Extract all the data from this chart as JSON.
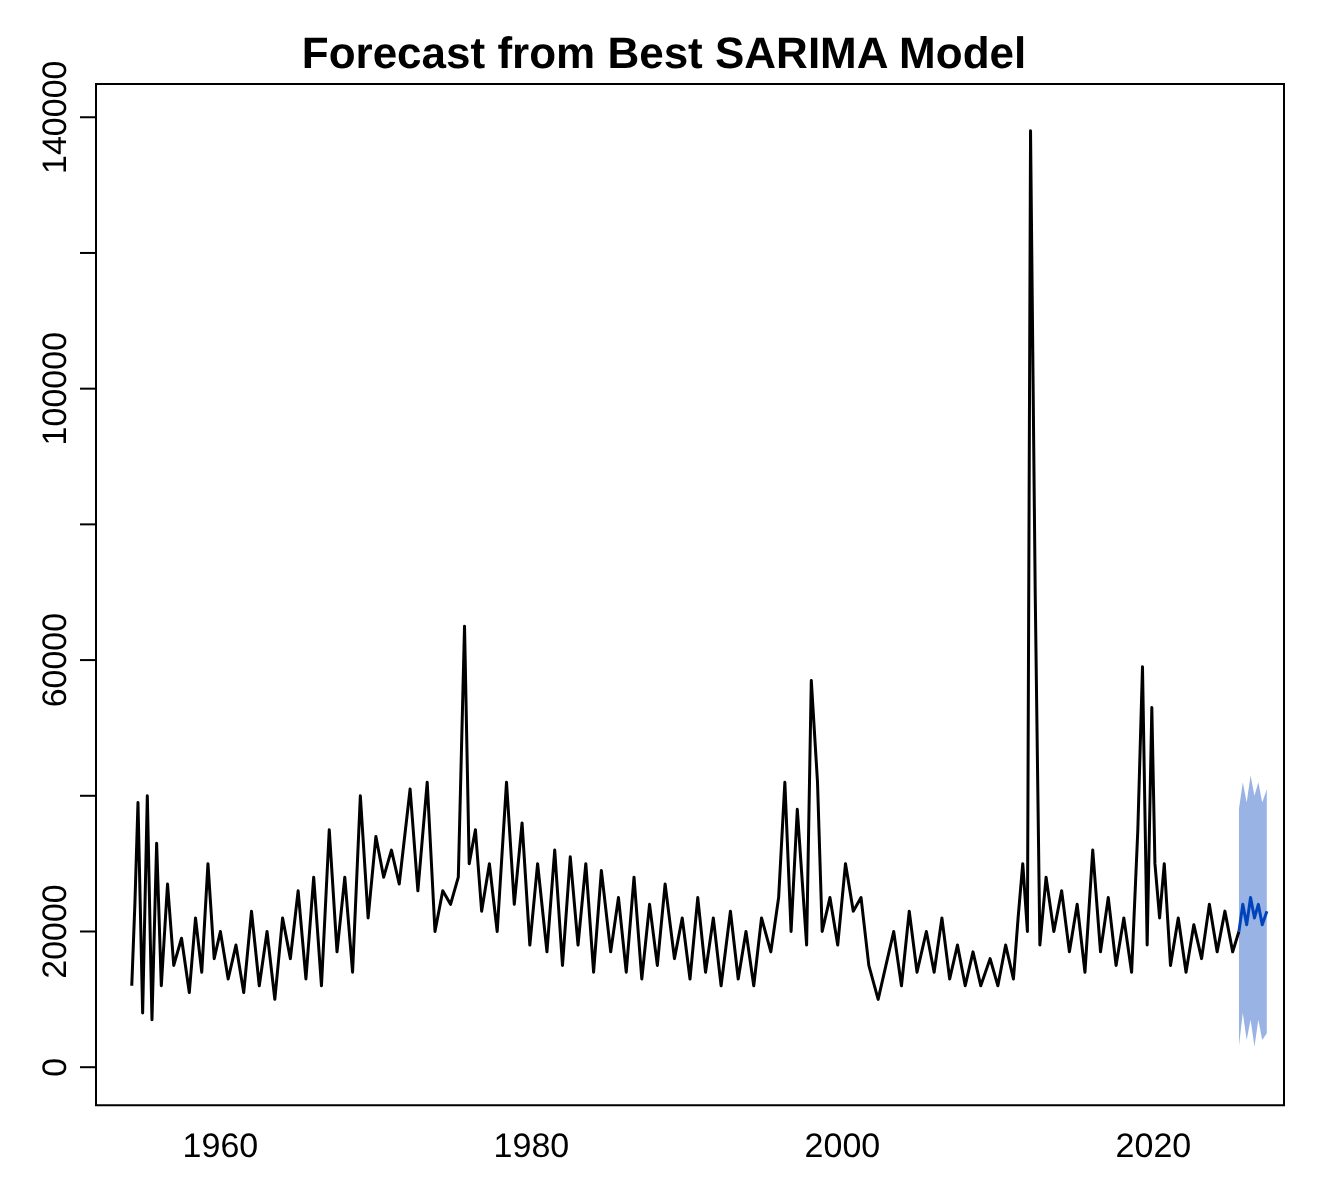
{
  "chart_data": {
    "type": "line",
    "title": "Forecast from Best SARIMA Model",
    "xlim": [
      1952,
      2028.4
    ],
    "xticks": [
      1960,
      1980,
      2000,
      2020
    ],
    "ylim": [
      -5600,
      144900
    ],
    "yticks": [
      0,
      20000,
      {
        "value": 40000,
        "label": null
      },
      60000,
      {
        "value": 80000,
        "label": null
      },
      100000,
      {
        "value": 120000,
        "label": null
      },
      140000
    ],
    "grid": false,
    "marker": "none",
    "series": [
      {
        "color": "#000000",
        "x": [
          1954.3,
          1954.5,
          1954.7,
          1955.0,
          1955.3,
          1955.6,
          1955.9,
          1956.2,
          1956.6,
          1957.0,
          1957.5,
          1958.0,
          1958.4,
          1958.8,
          1959.2,
          1959.6,
          1960.0,
          1960.5,
          1961.0,
          1961.5,
          1962.0,
          1962.5,
          1963.0,
          1963.5,
          1964.0,
          1964.5,
          1965.0,
          1965.5,
          1966.0,
          1966.5,
          1967.0,
          1967.5,
          1968.0,
          1968.5,
          1969.0,
          1969.5,
          1970.0,
          1970.5,
          1971.0,
          1971.5,
          1972.2,
          1972.7,
          1973.3,
          1973.8,
          1974.3,
          1974.8,
          1975.3,
          1975.7,
          1976.0,
          1976.4,
          1976.8,
          1977.3,
          1977.8,
          1978.4,
          1978.9,
          1979.4,
          1979.9,
          1980.4,
          1981.0,
          1981.5,
          1982.0,
          1982.5,
          1983.0,
          1983.5,
          1984.0,
          1984.5,
          1985.1,
          1985.6,
          1986.1,
          1986.6,
          1987.1,
          1987.6,
          1988.1,
          1988.6,
          1989.2,
          1989.7,
          1990.2,
          1990.7,
          1991.2,
          1991.7,
          1992.2,
          1992.8,
          1993.3,
          1993.8,
          1994.3,
          1994.8,
          1995.4,
          1995.9,
          1996.3,
          1996.7,
          1997.1,
          1997.7,
          1998.0,
          1998.4,
          1998.7,
          1999.2,
          1999.7,
          2000.2,
          2000.7,
          2001.2,
          2001.7,
          2002.3,
          2002.8,
          2003.3,
          2003.8,
          2004.3,
          2004.8,
          2005.4,
          2005.9,
          2006.4,
          2006.9,
          2007.4,
          2007.9,
          2008.4,
          2008.9,
          2009.5,
          2010.0,
          2010.5,
          2011.0,
          2011.3,
          2011.6,
          2011.9,
          2012.1,
          2012.4,
          2012.7,
          2013.1,
          2013.6,
          2014.1,
          2014.6,
          2015.1,
          2015.6,
          2016.1,
          2016.6,
          2017.1,
          2017.6,
          2018.1,
          2018.6,
          2019.0,
          2019.3,
          2019.6,
          2019.9,
          2020.1,
          2020.4,
          2020.7,
          2021.1,
          2021.6,
          2022.1,
          2022.6,
          2023.1,
          2023.6,
          2024.1,
          2024.6,
          2025.1,
          2025.5
        ],
        "values": [
          12000,
          24000,
          39000,
          8000,
          40000,
          7000,
          33000,
          12000,
          27000,
          15000,
          19000,
          11000,
          22000,
          14000,
          30000,
          16000,
          20000,
          13000,
          18000,
          11000,
          23000,
          12000,
          20000,
          10000,
          22000,
          16000,
          26000,
          13000,
          28000,
          12000,
          35000,
          17000,
          28000,
          14000,
          40000,
          22000,
          34000,
          28000,
          32000,
          27000,
          41000,
          26000,
          42000,
          20000,
          26000,
          24000,
          28000,
          65000,
          30000,
          35000,
          23000,
          30000,
          20000,
          42000,
          24000,
          36000,
          18000,
          30000,
          17000,
          32000,
          15000,
          31000,
          18000,
          30000,
          14000,
          29000,
          17000,
          25000,
          14000,
          28000,
          13000,
          24000,
          15000,
          27000,
          16000,
          22000,
          13000,
          25000,
          14000,
          22000,
          12000,
          23000,
          13000,
          20000,
          12000,
          22000,
          17000,
          25000,
          42000,
          20000,
          38000,
          18000,
          57000,
          42000,
          20000,
          25000,
          18000,
          30000,
          23000,
          25000,
          15000,
          10000,
          15000,
          20000,
          12000,
          23000,
          14000,
          20000,
          14000,
          22000,
          13000,
          18000,
          12000,
          17000,
          12000,
          16000,
          12000,
          18000,
          13000,
          22000,
          30000,
          20000,
          138000,
          70000,
          18000,
          28000,
          20000,
          26000,
          17000,
          24000,
          14000,
          32000,
          17000,
          25000,
          15000,
          22000,
          14000,
          35000,
          59000,
          18000,
          53000,
          30000,
          22000,
          30000,
          15000,
          22000,
          14000,
          21000,
          16000,
          24000,
          17000,
          23000,
          17000,
          20000
        ]
      },
      {
        "color": "#0044bb",
        "x": [
          2025.5,
          2025.75,
          2026.0,
          2026.25,
          2026.5,
          2026.75,
          2027.0,
          2027.3
        ],
        "values": [
          20000,
          24000,
          21000,
          25000,
          22000,
          24000,
          21000,
          23000
        ],
        "lower": [
          3000,
          8000,
          4000,
          7000,
          3000,
          7000,
          4000,
          5000
        ],
        "upper": [
          38000,
          42000,
          39000,
          43000,
          40000,
          42000,
          39000,
          41000
        ]
      }
    ]
  }
}
